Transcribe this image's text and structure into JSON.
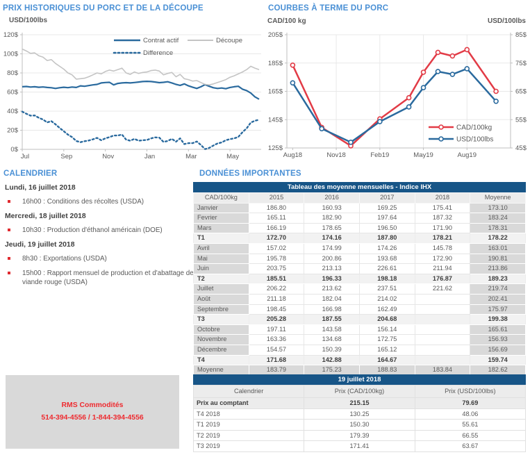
{
  "headings": {
    "historical": "PRIX HISTORIQUES DU PORC ET DE LA DÉCOUPE",
    "futures": "COURBES À TERME DU PORC",
    "calendar": "CALENDRIER",
    "data": "DONNÉES IMPORTANTES"
  },
  "colors": {
    "heading_blue": "#4a90d5",
    "navy_bar": "#175587",
    "chart_blue": "#2a6a9e",
    "chart_red": "#e23b46",
    "chart_gray": "#c4c4c4",
    "grid": "#e8e8e8",
    "axis": "#bfbfbf",
    "text_gray": "#595959",
    "cell_gray": "#d9d9d9",
    "rms_red": "#ee2b30"
  },
  "chart_data": [
    {
      "id": "historical",
      "type": "line",
      "title": "PRIX HISTORIQUES DU PORC ET DE LA DÉCOUPE",
      "unit_label": "USD/100lbs",
      "xlim": [
        0,
        11.5
      ],
      "ylim": [
        0,
        120
      ],
      "x_start": 0,
      "x_step": 0.2,
      "x_ticks": [
        {
          "v": 0,
          "label": "Jul"
        },
        {
          "v": 2,
          "label": "Sep"
        },
        {
          "v": 4,
          "label": "Nov"
        },
        {
          "v": 6,
          "label": "Jan"
        },
        {
          "v": 8,
          "label": "Mar"
        },
        {
          "v": 10,
          "label": "May"
        }
      ],
      "y_ticks": [
        {
          "v": 0,
          "label": "0$"
        },
        {
          "v": 20,
          "label": "20$"
        },
        {
          "v": 40,
          "label": "40$"
        },
        {
          "v": 60,
          "label": "60$"
        },
        {
          "v": 80,
          "label": "80$"
        },
        {
          "v": 100,
          "label": "100$"
        },
        {
          "v": 120,
          "label": "120$"
        }
      ],
      "series": [
        {
          "name": "Contrat actif",
          "color": "#2a6a9e",
          "style": "solid",
          "width": 2.2,
          "values": [
            65.5,
            65.8,
            65.2,
            65.5,
            65.0,
            65.3,
            64.8,
            64.5,
            63.8,
            64.5,
            65.0,
            64.6,
            65.2,
            64.8,
            66.5,
            66.0,
            66.8,
            67.5,
            68.0,
            69.5,
            70.0,
            70.2,
            67.5,
            69.0,
            69.5,
            69.8,
            69.5,
            70.0,
            70.5,
            71.0,
            71.2,
            71.0,
            70.5,
            69.8,
            70.2,
            70.8,
            69.5,
            68.0,
            67.0,
            68.5,
            66.5,
            65.0,
            63.8,
            65.5,
            67.8,
            66.0,
            64.5,
            63.8,
            64.2,
            63.5,
            64.8,
            65.5,
            66.0,
            63.0,
            61.5,
            59.0,
            55.0,
            52.5
          ]
        },
        {
          "name": "Découpe",
          "color": "#c4c4c4",
          "style": "solid",
          "width": 1.6,
          "values": [
            105.0,
            103.0,
            100.5,
            101.0,
            98.0,
            96.5,
            93.0,
            94.0,
            90.0,
            87.0,
            84.0,
            80.0,
            78.0,
            73.5,
            74.0,
            74.5,
            76.0,
            78.0,
            80.0,
            79.0,
            81.5,
            83.0,
            82.0,
            83.5,
            85.0,
            80.0,
            78.5,
            81.0,
            79.5,
            80.5,
            81.0,
            82.5,
            83.0,
            82.0,
            78.0,
            79.5,
            80.5,
            76.0,
            78.5,
            74.0,
            73.0,
            71.5,
            72.0,
            70.0,
            68.0,
            67.5,
            68.5,
            70.0,
            71.5,
            73.0,
            75.5,
            77.0,
            79.0,
            81.0,
            83.5,
            87.0,
            85.0,
            83.5
          ]
        },
        {
          "name": "Difference",
          "color": "#2a6a9e",
          "style": "dotted",
          "width": 2.4,
          "values": [
            39.5,
            37.2,
            35.3,
            35.5,
            33.0,
            31.2,
            28.2,
            29.5,
            26.2,
            22.5,
            19.0,
            15.4,
            12.8,
            8.7,
            7.5,
            8.5,
            9.2,
            10.5,
            12.0,
            9.5,
            11.5,
            12.8,
            14.5,
            14.5,
            15.5,
            10.2,
            9.0,
            11.0,
            9.0,
            9.5,
            9.8,
            11.5,
            12.5,
            12.2,
            7.8,
            8.7,
            11.0,
            8.0,
            11.5,
            5.5,
            6.5,
            6.5,
            8.2,
            4.5,
            0.2,
            1.5,
            4.0,
            6.2,
            7.3,
            9.5,
            10.7,
            11.5,
            13.0,
            18.0,
            22.0,
            28.0,
            30.0,
            31.0
          ]
        }
      ]
    },
    {
      "id": "futures",
      "type": "line",
      "title": "COURBES À TERME DU PORC",
      "left_axis_label": "CAD/100 kg",
      "right_axis_label": "USD/100lbs",
      "categories": [
        "Aug18",
        "Oct18",
        "Dec18",
        "Feb19",
        "Apr19",
        "May19",
        "Jun19",
        "Jul19",
        "Aug19",
        "Oct19"
      ],
      "x_months": [
        0,
        2,
        4,
        6,
        8,
        9,
        10,
        11,
        12,
        14
      ],
      "xlim": [
        -0.4,
        15
      ],
      "ylim_left": [
        125,
        205
      ],
      "ylim_right": [
        45,
        85
      ],
      "x_ticks": [
        {
          "v": 0,
          "label": "Aug18"
        },
        {
          "v": 3,
          "label": "Nov18"
        },
        {
          "v": 6,
          "label": "Feb19"
        },
        {
          "v": 9,
          "label": "May19"
        },
        {
          "v": 12,
          "label": "Aug19"
        }
      ],
      "y_ticks_left": [
        {
          "v": 125,
          "label": "125$"
        },
        {
          "v": 145,
          "label": "145$"
        },
        {
          "v": 165,
          "label": "165$"
        },
        {
          "v": 185,
          "label": "185$"
        },
        {
          "v": 205,
          "label": "205$"
        }
      ],
      "y_ticks_right": [
        {
          "v": 45,
          "label": "45$"
        },
        {
          "v": 55,
          "label": "55$"
        },
        {
          "v": 65,
          "label": "65$"
        },
        {
          "v": 75,
          "label": "75$"
        },
        {
          "v": 85,
          "label": "85$"
        }
      ],
      "series": [
        {
          "name": "CAD/100kg",
          "axis": "left",
          "color": "#e23b46",
          "values": [
            183.5,
            139.5,
            126.5,
            145.5,
            160.5,
            178.5,
            192.5,
            190.0,
            194.5,
            165.0
          ]
        },
        {
          "name": "USD/100lbs",
          "axis": "right",
          "color": "#2a6a9e",
          "values": [
            68.0,
            51.8,
            47.0,
            54.3,
            59.5,
            66.3,
            72.0,
            71.0,
            73.0,
            61.5
          ]
        }
      ]
    }
  ],
  "calendar": {
    "events": [
      {
        "day": "Lundi, 16 juillet 2018",
        "items": [
          "16h00 : Conditions des récoltes (USDA)"
        ]
      },
      {
        "day": "Mercredi, 18 juillet 2018",
        "items": [
          "10h30 : Production d'éthanol américain (DOE)"
        ]
      },
      {
        "day": "Jeudi, 19 juillet 2018",
        "items": [
          "8h30 : Exportations (USDA)",
          "15h00 : Rapport mensuel de production et d'abattage de viande rouge (USDA)"
        ]
      }
    ]
  },
  "tables": {
    "monthly": {
      "title": "Tableau des moyenne mensuelles - Indice IHX",
      "columns": [
        "CAD/100kg",
        "2015",
        "2016",
        "2017",
        "2018",
        "Moyenne"
      ],
      "rows": [
        {
          "type": "month",
          "label": "Janvier",
          "values": [
            "186.80",
            "160.93",
            "169.25",
            "175.41"
          ],
          "moyenne": "173.10"
        },
        {
          "type": "month",
          "label": "Fevrier",
          "values": [
            "165.11",
            "182.90",
            "197.64",
            "187.32"
          ],
          "moyenne": "183.24"
        },
        {
          "type": "month",
          "label": "Mars",
          "values": [
            "166.19",
            "178.65",
            "196.50",
            "171.90"
          ],
          "moyenne": "178.31"
        },
        {
          "type": "quarter",
          "label": "T1",
          "values": [
            "172.70",
            "174.16",
            "187.80",
            "178.21"
          ],
          "moyenne": "178.22"
        },
        {
          "type": "month",
          "label": "Avril",
          "values": [
            "157.02",
            "174.99",
            "174.26",
            "145.78"
          ],
          "moyenne": "163.01"
        },
        {
          "type": "month",
          "label": "Mai",
          "values": [
            "195.78",
            "200.86",
            "193.68",
            "172.90"
          ],
          "moyenne": "190.81"
        },
        {
          "type": "month",
          "label": "Juin",
          "values": [
            "203.75",
            "213.13",
            "226.61",
            "211.94"
          ],
          "moyenne": "213.86"
        },
        {
          "type": "quarter",
          "label": "T2",
          "values": [
            "185.51",
            "196.33",
            "198.18",
            "176.87"
          ],
          "moyenne": "189.23"
        },
        {
          "type": "month",
          "label": "Juillet",
          "values": [
            "206.22",
            "213.62",
            "237.51",
            "221.62"
          ],
          "moyenne": "219.74"
        },
        {
          "type": "month",
          "label": "Août",
          "values": [
            "211.18",
            "182.04",
            "214.02",
            ""
          ],
          "moyenne": "202.41"
        },
        {
          "type": "month",
          "label": "Septembre",
          "values": [
            "198.45",
            "166.98",
            "162.49",
            ""
          ],
          "moyenne": "175.97"
        },
        {
          "type": "quarter",
          "label": "T3",
          "values": [
            "205.28",
            "187.55",
            "204.68",
            ""
          ],
          "moyenne": "199.38"
        },
        {
          "type": "month",
          "label": "Octobre",
          "values": [
            "197.11",
            "143.58",
            "156.14",
            ""
          ],
          "moyenne": "165.61"
        },
        {
          "type": "month",
          "label": "Novembre",
          "values": [
            "163.36",
            "134.68",
            "172.75",
            ""
          ],
          "moyenne": "156.93"
        },
        {
          "type": "month",
          "label": "Décembre",
          "values": [
            "154.57",
            "150.39",
            "165.12",
            ""
          ],
          "moyenne": "156.69"
        },
        {
          "type": "quarter",
          "label": "T4",
          "values": [
            "171.68",
            "142.88",
            "164.67",
            ""
          ],
          "moyenne": "159.74"
        },
        {
          "type": "avg",
          "label": "Moyenne",
          "values": [
            "183.79",
            "175.23",
            "188.83",
            "183.84"
          ],
          "moyenne": "182.62"
        }
      ]
    },
    "daily": {
      "title": "19 juillet 2018",
      "columns": [
        "Calendrier",
        "Prix (CAD/100kg)",
        "Prix (USD/100lbs)"
      ],
      "rows": [
        {
          "label": "Prix au comptant",
          "cad": "215.15",
          "usd": "79.69",
          "bold": true
        },
        {
          "label": "T4 2018",
          "cad": "130.25",
          "usd": "48.06",
          "bold": false
        },
        {
          "label": "T1 2019",
          "cad": "150.30",
          "usd": "55.61",
          "bold": false
        },
        {
          "label": "T2 2019",
          "cad": "179.39",
          "usd": "66.55",
          "bold": false
        },
        {
          "label": "T3 2019",
          "cad": "171.41",
          "usd": "63.67",
          "bold": false
        }
      ]
    }
  },
  "rms": {
    "line1": "RMS Commodités",
    "line2": "514-394-4556 / 1-844-394-4556"
  }
}
